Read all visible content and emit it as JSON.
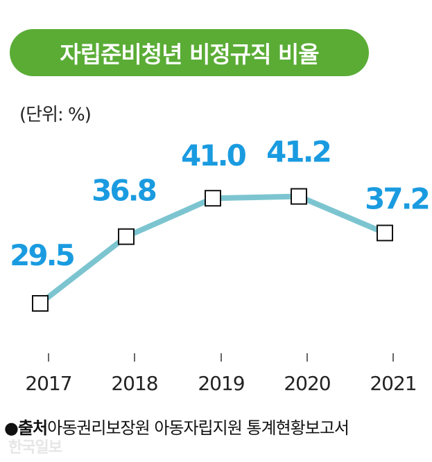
{
  "title": "자립준비청년 비정규직 비율",
  "unit_label": "(단위: %)",
  "source": {
    "bullet": "●",
    "label": "출처",
    "text": "아동권리보장원 아동자립지원 통계현황보고서"
  },
  "watermark": "한국일보",
  "colors": {
    "title_bg": "#5aac35",
    "line": "#7cc5d0",
    "data_label": "#1a9be0",
    "marker_stroke": "#111111"
  },
  "chart_data": {
    "type": "line",
    "categories": [
      "2017",
      "2018",
      "2019",
      "2020",
      "2021"
    ],
    "values": [
      29.5,
      36.8,
      41.0,
      41.2,
      37.2
    ],
    "data_labels": [
      "29.5",
      "36.8",
      "41.0",
      "41.2",
      "37.2"
    ],
    "title": "자립준비청년 비정규직 비율",
    "ylabel": "(단위: %)",
    "xlabel": "",
    "marker": "hollow-square",
    "grid": false
  }
}
